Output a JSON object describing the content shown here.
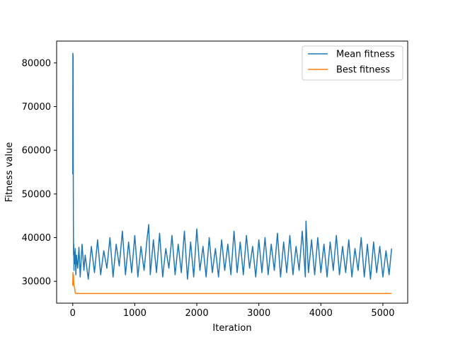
{
  "chart_data": {
    "type": "line",
    "xlabel": "Iteration",
    "ylabel": "Fitness value",
    "xlim": [
      -260,
      5400
    ],
    "ylim": [
      25000,
      85000
    ],
    "xticks": [
      0,
      1000,
      2000,
      3000,
      4000,
      5000
    ],
    "yticks": [
      30000,
      40000,
      50000,
      60000,
      70000,
      80000
    ],
    "xtick_labels": [
      "0",
      "1000",
      "2000",
      "3000",
      "4000",
      "5000"
    ],
    "ytick_labels": [
      "30000",
      "40000",
      "50000",
      "60000",
      "70000",
      "80000"
    ],
    "legend_position": "top-right",
    "grid": false,
    "series": [
      {
        "name": "Mean fitness",
        "color": "#1f77b4",
        "x": [
          0,
          2,
          4,
          6,
          8,
          10,
          13,
          16,
          20,
          25,
          30,
          40,
          50,
          60,
          80,
          100,
          120,
          150,
          180,
          200,
          250,
          300,
          350,
          400,
          450,
          500,
          550,
          600,
          650,
          700,
          750,
          800,
          850,
          900,
          950,
          1000,
          1050,
          1100,
          1150,
          1200,
          1225,
          1250,
          1300,
          1350,
          1400,
          1450,
          1500,
          1550,
          1600,
          1650,
          1700,
          1750,
          1800,
          1850,
          1900,
          1950,
          2000,
          2050,
          2100,
          2150,
          2200,
          2250,
          2300,
          2350,
          2400,
          2450,
          2500,
          2550,
          2600,
          2650,
          2700,
          2750,
          2800,
          2850,
          2900,
          2950,
          3000,
          3050,
          3100,
          3150,
          3200,
          3250,
          3300,
          3350,
          3400,
          3450,
          3500,
          3550,
          3600,
          3650,
          3700,
          3750,
          3760,
          3800,
          3850,
          3900,
          3950,
          4000,
          4050,
          4100,
          4150,
          4200,
          4250,
          4300,
          4350,
          4400,
          4450,
          4500,
          4550,
          4600,
          4650,
          4700,
          4750,
          4800,
          4850,
          4900,
          4950,
          5000,
          5050,
          5100,
          5140
        ],
        "y": [
          54500,
          82200,
          67500,
          81800,
          58000,
          45000,
          36000,
          38500,
          32500,
          36800,
          34000,
          37500,
          31500,
          36000,
          33000,
          37800,
          31000,
          38500,
          32500,
          36000,
          30500,
          38000,
          32000,
          39500,
          31500,
          37000,
          33000,
          40000,
          31000,
          38500,
          33500,
          41500,
          31500,
          39000,
          32000,
          40500,
          31000,
          38000,
          32500,
          40000,
          43000,
          31500,
          39500,
          32000,
          41000,
          31000,
          37500,
          33000,
          40500,
          31500,
          38500,
          32000,
          41500,
          30500,
          39000,
          31000,
          42000,
          32500,
          38000,
          31000,
          40000,
          32000,
          37500,
          31000,
          39500,
          32500,
          38500,
          31500,
          41500,
          32000,
          39000,
          31500,
          40500,
          33000,
          38000,
          31000,
          39500,
          32000,
          40000,
          31500,
          38500,
          32500,
          41000,
          31000,
          39000,
          32000,
          40500,
          31500,
          38000,
          32500,
          41500,
          31000,
          43800,
          32000,
          39500,
          31500,
          40000,
          32000,
          38500,
          31000,
          39000,
          32500,
          40500,
          31500,
          38000,
          32000,
          39500,
          31000,
          37500,
          32500,
          40000,
          31000,
          38500,
          30500,
          39000,
          32000,
          38000,
          31000,
          37000,
          31500,
          37500
        ]
      },
      {
        "name": "Best fitness",
        "color": "#ff7f0e",
        "x": [
          0,
          4,
          8,
          12,
          16,
          20,
          30,
          40,
          60,
          100,
          500,
          1000,
          2000,
          3000,
          4000,
          5000,
          5140
        ],
        "y": [
          29000,
          32000,
          30500,
          31500,
          29500,
          29000,
          28500,
          27300,
          27200,
          27200,
          27200,
          27200,
          27200,
          27200,
          27200,
          27200,
          27200
        ]
      }
    ]
  }
}
